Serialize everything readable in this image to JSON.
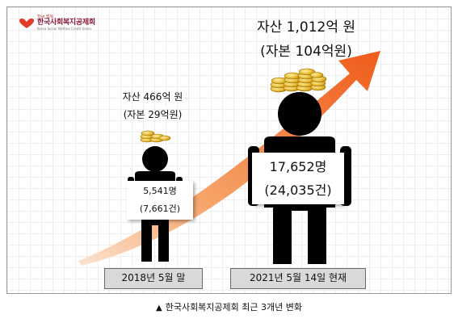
{
  "logo": {
    "tag": "The 행복",
    "name": "한국사회복지공제회",
    "english": "Korea Social Welfare Credit Union",
    "colors": {
      "primary": "#8e1b3c",
      "accent": "#e23b2a"
    }
  },
  "chart_data": {
    "type": "diagram",
    "points": [
      {
        "date_label": "2018년 5월 말",
        "asset_line1": "자산 466억 원",
        "asset_line2": "(자본 29억원)",
        "members": "5,541명",
        "cases": "(7,661건)",
        "asset_value": 466,
        "capital_value": 29
      },
      {
        "date_label": "2021년 5월 14일 현재",
        "asset_line1": "자산 1,012억 원",
        "asset_line2": "(자본 104억원)",
        "members": "17,652명",
        "cases": "(24,035건)",
        "asset_value": 1012,
        "capital_value": 104
      }
    ],
    "arrow_color": "#f26522"
  },
  "caption": {
    "marker": "▲",
    "text": "한국사회복지공제회 최근 3개년 변화"
  }
}
